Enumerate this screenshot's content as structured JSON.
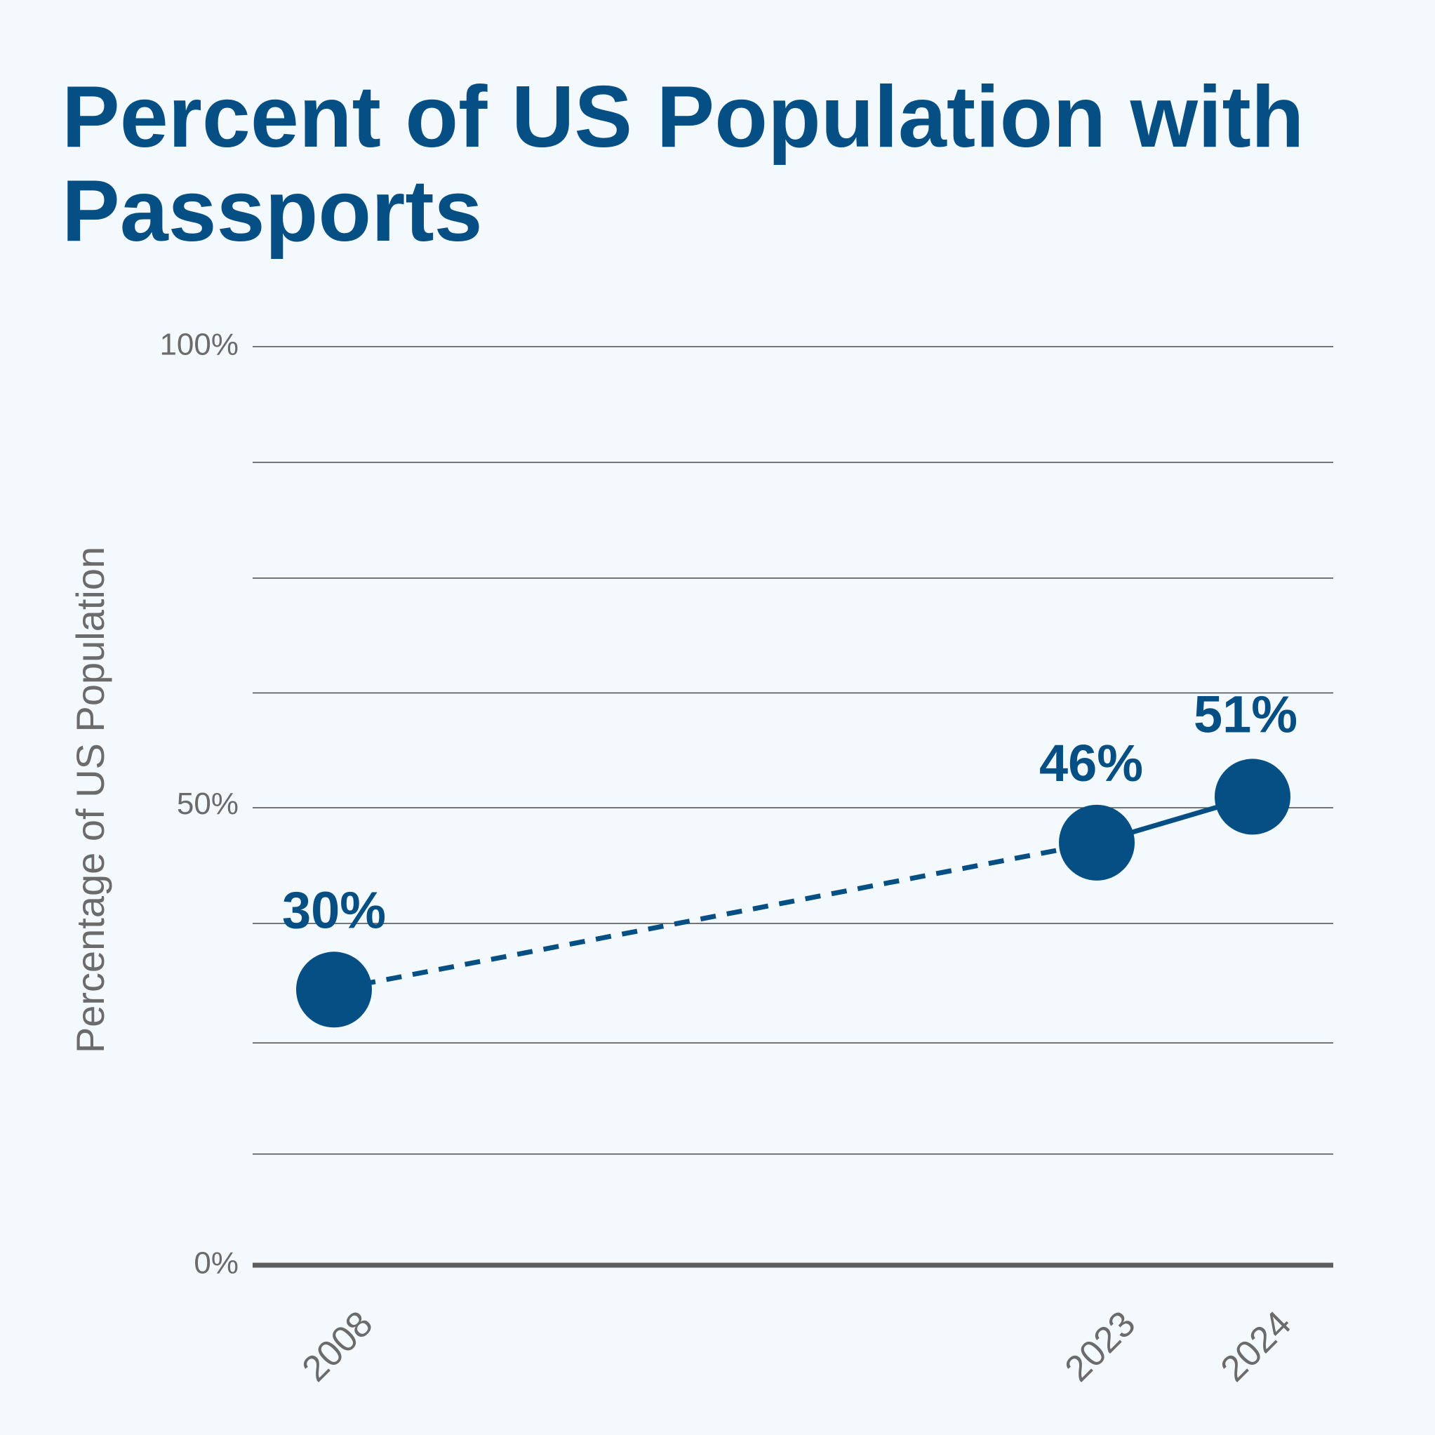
{
  "chart_data": {
    "type": "line",
    "title": "Percent of US Population with Passports",
    "ylabel": "Percentage of US Population",
    "xlabel": "",
    "ylim": [
      0,
      100
    ],
    "yticks": [
      {
        "value": 0,
        "label": "0%"
      },
      {
        "value": 50,
        "label": "50%"
      },
      {
        "value": 100,
        "label": "100%"
      }
    ],
    "gridlines": [
      0,
      12.1,
      24.2,
      37.2,
      49.8,
      62.3,
      74.8,
      87.4,
      100
    ],
    "grid": true,
    "x": [
      "2008",
      "2023",
      "2024"
    ],
    "series": [
      {
        "values": [
          30,
          46,
          51
        ],
        "labels": [
          "30%",
          "46%",
          "51%"
        ],
        "segment_styles": [
          "dashed",
          "solid"
        ],
        "color": "#064f85"
      }
    ]
  },
  "colors": {
    "background": "#f3f9fd",
    "accent": "#064f85",
    "grid": "#4a4a4a",
    "text_muted": "#6b6b6b"
  }
}
